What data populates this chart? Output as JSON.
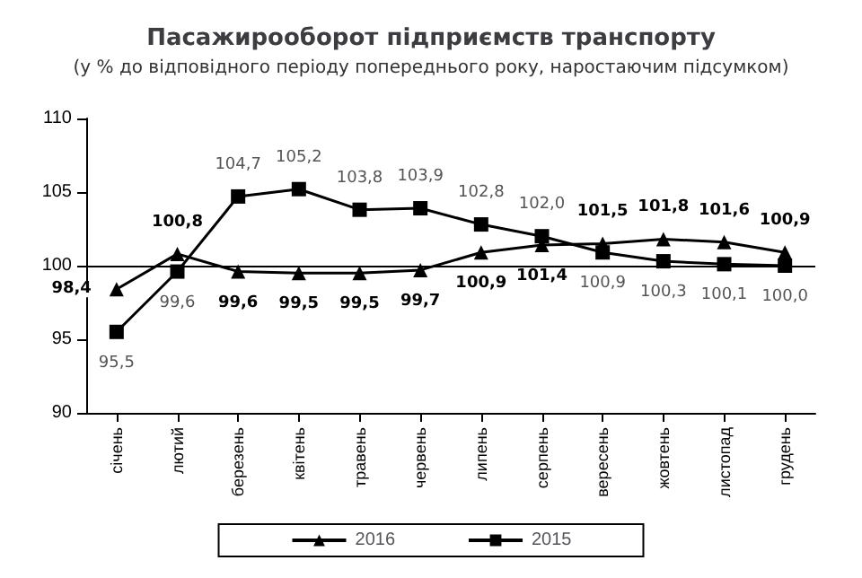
{
  "chart_data": {
    "type": "line",
    "title": "Пасажирооборот підприємств транспорту",
    "subtitle": "(у % до відповідного періоду попереднього року, наростаючим підсумком)",
    "categories": [
      "січень",
      "лютий",
      "березень",
      "квітень",
      "травень",
      "червень",
      "липень",
      "серпень",
      "вересень",
      "жовтень",
      "листопад",
      "грудень"
    ],
    "series": [
      {
        "name": "2016",
        "color": "#000000",
        "marker": "triangle",
        "values": [
          98.4,
          100.8,
          99.6,
          99.5,
          99.5,
          99.7,
          100.9,
          101.4,
          101.5,
          101.8,
          101.6,
          100.9
        ],
        "value_labels": [
          "98,4",
          "100,8",
          "99,6",
          "99,5",
          "99,5",
          "99,7",
          "100,9",
          "101,4",
          "101,5",
          "101,8",
          "101,6",
          "100,9"
        ]
      },
      {
        "name": "2015",
        "color": "#000000",
        "marker": "square",
        "values": [
          95.5,
          99.6,
          104.7,
          105.2,
          103.8,
          103.9,
          102.8,
          102.0,
          100.9,
          100.3,
          100.1,
          100.0
        ],
        "value_labels": [
          "95,5",
          "99,6",
          "104,7",
          "105,2",
          "103,8",
          "103,9",
          "102,8",
          "102,0",
          "100,9",
          "100,3",
          "100,1",
          "100,0"
        ]
      }
    ],
    "ylim": [
      90,
      110
    ],
    "yticks": [
      90,
      95,
      100,
      105,
      110
    ],
    "grid": false,
    "legend": "bottom",
    "ref_lines": [
      {
        "axis": "y",
        "value": 100,
        "color": "#000000"
      }
    ]
  }
}
